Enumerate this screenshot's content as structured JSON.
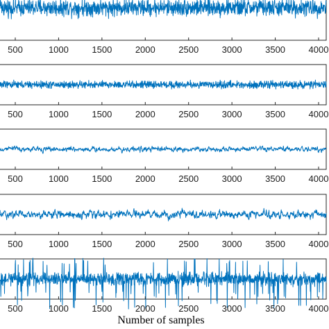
{
  "chart_data": {
    "type": "line",
    "xlabel": "Number of samples",
    "ylabel": "",
    "title": "",
    "xlim": [
      0,
      4096
    ],
    "x_ticks": [
      500,
      1000,
      1500,
      2000,
      2500,
      3000,
      3500,
      4000
    ],
    "x_tick_labels": [
      "500",
      "1000",
      "1500",
      "2000",
      "2500",
      "3000",
      "3500",
      "4000"
    ],
    "line_color": "#0072bd",
    "grid": false,
    "series": [
      {
        "description_hint": "panel 1",
        "amplitude": 1.0,
        "style": "broadband"
      },
      {
        "description_hint": "panel 2",
        "amplitude": 0.35,
        "style": "broadband"
      },
      {
        "description_hint": "panel 3",
        "amplitude": 0.35,
        "style": "oscillatory"
      },
      {
        "description_hint": "panel 4",
        "amplitude": 0.55,
        "style": "oscillatory"
      },
      {
        "description_hint": "panel 5",
        "amplitude": 1.0,
        "style": "impulsive"
      }
    ]
  }
}
